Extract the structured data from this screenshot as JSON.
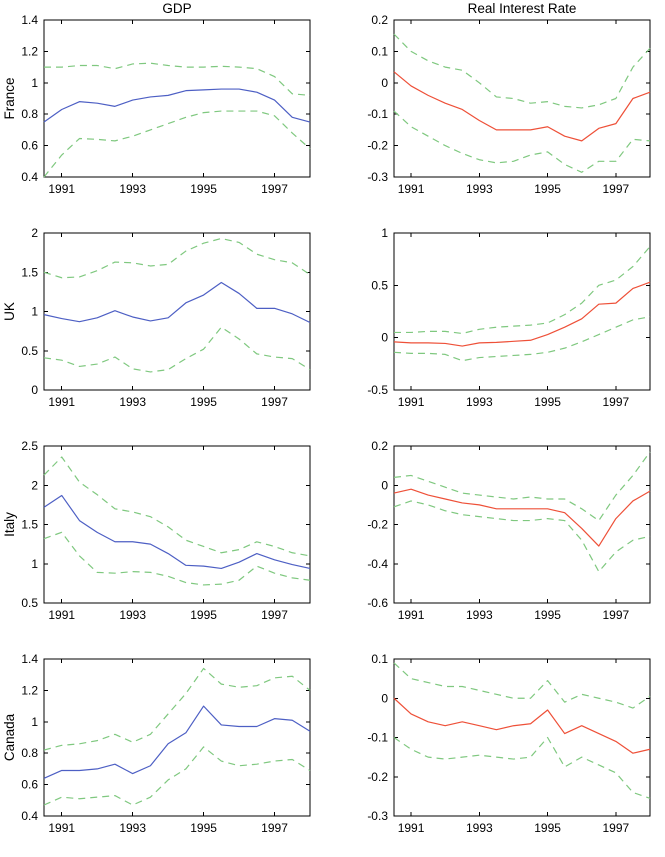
{
  "figure": {
    "columns": [
      {
        "title": "GDP"
      },
      {
        "title": "Real Interest Rate"
      }
    ],
    "rows": [
      {
        "label": "France"
      },
      {
        "label": "UK"
      },
      {
        "label": "Italy"
      },
      {
        "label": "Canada"
      }
    ],
    "colors": {
      "gdp_line": "#4d5fc4",
      "rate_line": "#ee5038",
      "band_line": "#7fc87f",
      "axis": "#000000",
      "background": "#ffffff"
    }
  },
  "chart_data": [
    {
      "id": "france-gdp",
      "type": "line",
      "row_label": "France",
      "column_title": "GDP",
      "x": [
        1990.5,
        1991,
        1991.5,
        1992,
        1992.5,
        1993,
        1993.5,
        1994,
        1994.5,
        1995,
        1995.5,
        1996,
        1996.5,
        1997,
        1997.5,
        1998
      ],
      "xlim": [
        1990.5,
        1998
      ],
      "xticks": [
        1991,
        1993,
        1995,
        1997
      ],
      "ylim": [
        0.4,
        1.4
      ],
      "yticks": [
        0.4,
        0.6,
        0.8,
        1,
        1.2,
        1.4
      ],
      "series": [
        {
          "name": "estimate",
          "style": "solid",
          "color_role": "gdp_line",
          "values": [
            0.75,
            0.83,
            0.88,
            0.87,
            0.85,
            0.89,
            0.91,
            0.92,
            0.95,
            0.955,
            0.96,
            0.96,
            0.94,
            0.89,
            0.78,
            0.75
          ]
        },
        {
          "name": "upper-band",
          "style": "dashed",
          "color_role": "band_line",
          "values": [
            1.1,
            1.1,
            1.11,
            1.11,
            1.09,
            1.12,
            1.125,
            1.11,
            1.1,
            1.1,
            1.105,
            1.1,
            1.09,
            1.04,
            0.93,
            0.92
          ]
        },
        {
          "name": "lower-band",
          "style": "dashed",
          "color_role": "band_line",
          "values": [
            0.4,
            0.54,
            0.645,
            0.64,
            0.63,
            0.66,
            0.7,
            0.74,
            0.78,
            0.81,
            0.82,
            0.82,
            0.82,
            0.79,
            0.68,
            0.58
          ]
        }
      ]
    },
    {
      "id": "france-rate",
      "type": "line",
      "row_label": "France",
      "column_title": "Real Interest Rate",
      "x": [
        1990.5,
        1991,
        1991.5,
        1992,
        1992.5,
        1993,
        1993.5,
        1994,
        1994.5,
        1995,
        1995.5,
        1996,
        1996.5,
        1997,
        1997.5,
        1998
      ],
      "xlim": [
        1990.5,
        1998
      ],
      "xticks": [
        1991,
        1993,
        1995,
        1997
      ],
      "ylim": [
        -0.3,
        0.2
      ],
      "yticks": [
        -0.3,
        -0.2,
        -0.1,
        0,
        0.1,
        0.2
      ],
      "series": [
        {
          "name": "estimate",
          "style": "solid",
          "color_role": "rate_line",
          "values": [
            0.035,
            -0.01,
            -0.04,
            -0.065,
            -0.085,
            -0.12,
            -0.15,
            -0.15,
            -0.15,
            -0.14,
            -0.17,
            -0.185,
            -0.145,
            -0.13,
            -0.05,
            -0.03
          ]
        },
        {
          "name": "upper-band",
          "style": "dashed",
          "color_role": "band_line",
          "values": [
            0.155,
            0.1,
            0.07,
            0.05,
            0.04,
            0.0,
            -0.045,
            -0.05,
            -0.065,
            -0.06,
            -0.075,
            -0.08,
            -0.07,
            -0.05,
            0.05,
            0.11
          ]
        },
        {
          "name": "lower-band",
          "style": "dashed",
          "color_role": "band_line",
          "values": [
            -0.09,
            -0.14,
            -0.17,
            -0.2,
            -0.225,
            -0.245,
            -0.255,
            -0.25,
            -0.23,
            -0.22,
            -0.26,
            -0.285,
            -0.25,
            -0.25,
            -0.18,
            -0.185
          ]
        }
      ]
    },
    {
      "id": "uk-gdp",
      "type": "line",
      "row_label": "UK",
      "column_title": "GDP",
      "x": [
        1990.5,
        1991,
        1991.5,
        1992,
        1992.5,
        1993,
        1993.5,
        1994,
        1994.5,
        1995,
        1995.5,
        1996,
        1996.5,
        1997,
        1997.5,
        1998
      ],
      "xlim": [
        1990.5,
        1998
      ],
      "xticks": [
        1991,
        1993,
        1995,
        1997
      ],
      "ylim": [
        0,
        2
      ],
      "yticks": [
        0,
        0.5,
        1,
        1.5,
        2
      ],
      "series": [
        {
          "name": "estimate",
          "style": "solid",
          "color_role": "gdp_line",
          "values": [
            0.96,
            0.91,
            0.87,
            0.92,
            1.01,
            0.93,
            0.88,
            0.92,
            1.11,
            1.21,
            1.37,
            1.23,
            1.04,
            1.04,
            0.97,
            0.86
          ]
        },
        {
          "name": "upper-band",
          "style": "dashed",
          "color_role": "band_line",
          "values": [
            1.5,
            1.43,
            1.44,
            1.52,
            1.63,
            1.62,
            1.58,
            1.6,
            1.77,
            1.87,
            1.93,
            1.88,
            1.73,
            1.66,
            1.62,
            1.47
          ]
        },
        {
          "name": "lower-band",
          "style": "dashed",
          "color_role": "band_line",
          "values": [
            0.41,
            0.38,
            0.3,
            0.33,
            0.42,
            0.27,
            0.23,
            0.26,
            0.4,
            0.52,
            0.8,
            0.65,
            0.46,
            0.42,
            0.4,
            0.26
          ]
        }
      ]
    },
    {
      "id": "uk-rate",
      "type": "line",
      "row_label": "UK",
      "column_title": "Real Interest Rate",
      "x": [
        1990.5,
        1991,
        1991.5,
        1992,
        1992.5,
        1993,
        1993.5,
        1994,
        1994.5,
        1995,
        1995.5,
        1996,
        1996.5,
        1997,
        1997.5,
        1998
      ],
      "xlim": [
        1990.5,
        1998
      ],
      "xticks": [
        1991,
        1993,
        1995,
        1997
      ],
      "ylim": [
        -0.5,
        1
      ],
      "yticks": [
        -0.5,
        0,
        0.5,
        1
      ],
      "series": [
        {
          "name": "estimate",
          "style": "solid",
          "color_role": "rate_line",
          "values": [
            -0.04,
            -0.05,
            -0.05,
            -0.055,
            -0.08,
            -0.05,
            -0.045,
            -0.035,
            -0.025,
            0.03,
            0.1,
            0.18,
            0.32,
            0.33,
            0.47,
            0.53
          ]
        },
        {
          "name": "upper-band",
          "style": "dashed",
          "color_role": "band_line",
          "values": [
            0.05,
            0.05,
            0.06,
            0.06,
            0.04,
            0.08,
            0.1,
            0.11,
            0.12,
            0.14,
            0.22,
            0.33,
            0.5,
            0.55,
            0.68,
            0.87
          ]
        },
        {
          "name": "lower-band",
          "style": "dashed",
          "color_role": "band_line",
          "values": [
            -0.14,
            -0.15,
            -0.15,
            -0.16,
            -0.22,
            -0.19,
            -0.18,
            -0.17,
            -0.16,
            -0.14,
            -0.1,
            -0.04,
            0.03,
            0.1,
            0.17,
            0.2
          ]
        }
      ]
    },
    {
      "id": "italy-gdp",
      "type": "line",
      "row_label": "Italy",
      "column_title": "GDP",
      "x": [
        1990.5,
        1991,
        1991.5,
        1992,
        1992.5,
        1993,
        1993.5,
        1994,
        1994.5,
        1995,
        1995.5,
        1996,
        1996.5,
        1997,
        1997.5,
        1998
      ],
      "xlim": [
        1990.5,
        1998
      ],
      "xticks": [
        1991,
        1993,
        1995,
        1997
      ],
      "ylim": [
        0.5,
        2.5
      ],
      "yticks": [
        0.5,
        1,
        1.5,
        2,
        2.5
      ],
      "series": [
        {
          "name": "estimate",
          "style": "solid",
          "color_role": "gdp_line",
          "values": [
            1.72,
            1.87,
            1.55,
            1.4,
            1.28,
            1.28,
            1.25,
            1.13,
            0.98,
            0.97,
            0.94,
            1.02,
            1.13,
            1.05,
            0.99,
            0.94
          ]
        },
        {
          "name": "upper-band",
          "style": "dashed",
          "color_role": "band_line",
          "values": [
            2.13,
            2.36,
            2.04,
            1.88,
            1.7,
            1.66,
            1.6,
            1.47,
            1.3,
            1.22,
            1.14,
            1.18,
            1.28,
            1.22,
            1.14,
            1.1
          ]
        },
        {
          "name": "lower-band",
          "style": "dashed",
          "color_role": "band_line",
          "values": [
            1.32,
            1.4,
            1.1,
            0.89,
            0.88,
            0.9,
            0.89,
            0.84,
            0.76,
            0.73,
            0.74,
            0.79,
            0.97,
            0.88,
            0.82,
            0.79
          ]
        }
      ]
    },
    {
      "id": "italy-rate",
      "type": "line",
      "row_label": "Italy",
      "column_title": "Real Interest Rate",
      "x": [
        1990.5,
        1991,
        1991.5,
        1992,
        1992.5,
        1993,
        1993.5,
        1994,
        1994.5,
        1995,
        1995.5,
        1996,
        1996.5,
        1997,
        1997.5,
        1998
      ],
      "xlim": [
        1990.5,
        1998
      ],
      "xticks": [
        1991,
        1993,
        1995,
        1997
      ],
      "ylim": [
        -0.6,
        0.2
      ],
      "yticks": [
        -0.6,
        -0.4,
        -0.2,
        0,
        0.2
      ],
      "series": [
        {
          "name": "estimate",
          "style": "solid",
          "color_role": "rate_line",
          "values": [
            -0.04,
            -0.02,
            -0.05,
            -0.07,
            -0.09,
            -0.1,
            -0.12,
            -0.12,
            -0.12,
            -0.12,
            -0.14,
            -0.22,
            -0.31,
            -0.17,
            -0.08,
            -0.03
          ]
        },
        {
          "name": "upper-band",
          "style": "dashed",
          "color_role": "band_line",
          "values": [
            0.04,
            0.05,
            0.02,
            -0.01,
            -0.04,
            -0.05,
            -0.06,
            -0.07,
            -0.06,
            -0.07,
            -0.07,
            -0.12,
            -0.18,
            -0.05,
            0.05,
            0.17
          ]
        },
        {
          "name": "lower-band",
          "style": "dashed",
          "color_role": "band_line",
          "values": [
            -0.11,
            -0.08,
            -0.1,
            -0.13,
            -0.15,
            -0.16,
            -0.17,
            -0.18,
            -0.18,
            -0.17,
            -0.18,
            -0.28,
            -0.44,
            -0.34,
            -0.28,
            -0.26
          ]
        }
      ]
    },
    {
      "id": "canada-gdp",
      "type": "line",
      "row_label": "Canada",
      "column_title": "GDP",
      "x": [
        1990.5,
        1991,
        1991.5,
        1992,
        1992.5,
        1993,
        1993.5,
        1994,
        1994.5,
        1995,
        1995.5,
        1996,
        1996.5,
        1997,
        1997.5,
        1998
      ],
      "xlim": [
        1990.5,
        1998
      ],
      "xticks": [
        1991,
        1993,
        1995,
        1997
      ],
      "ylim": [
        0.4,
        1.4
      ],
      "yticks": [
        0.4,
        0.6,
        0.8,
        1,
        1.2,
        1.4
      ],
      "series": [
        {
          "name": "estimate",
          "style": "solid",
          "color_role": "gdp_line",
          "values": [
            0.64,
            0.69,
            0.69,
            0.7,
            0.73,
            0.67,
            0.72,
            0.86,
            0.93,
            1.1,
            0.98,
            0.97,
            0.97,
            1.02,
            1.01,
            0.94
          ]
        },
        {
          "name": "upper-band",
          "style": "dashed",
          "color_role": "band_line",
          "values": [
            0.82,
            0.85,
            0.86,
            0.88,
            0.92,
            0.87,
            0.92,
            1.05,
            1.18,
            1.34,
            1.24,
            1.22,
            1.23,
            1.28,
            1.29,
            1.2
          ]
        },
        {
          "name": "lower-band",
          "style": "dashed",
          "color_role": "band_line",
          "values": [
            0.47,
            0.52,
            0.51,
            0.52,
            0.53,
            0.47,
            0.52,
            0.63,
            0.7,
            0.84,
            0.75,
            0.72,
            0.73,
            0.75,
            0.76,
            0.69
          ]
        }
      ]
    },
    {
      "id": "canada-rate",
      "type": "line",
      "row_label": "Canada",
      "column_title": "Real Interest Rate",
      "x": [
        1990.5,
        1991,
        1991.5,
        1992,
        1992.5,
        1993,
        1993.5,
        1994,
        1994.5,
        1995,
        1995.5,
        1996,
        1996.5,
        1997,
        1997.5,
        1998
      ],
      "xlim": [
        1990.5,
        1998
      ],
      "xticks": [
        1991,
        1993,
        1995,
        1997
      ],
      "ylim": [
        -0.3,
        0.1
      ],
      "yticks": [
        -0.3,
        -0.2,
        -0.1,
        0,
        0.1
      ],
      "series": [
        {
          "name": "estimate",
          "style": "solid",
          "color_role": "rate_line",
          "values": [
            0.0,
            -0.04,
            -0.06,
            -0.07,
            -0.06,
            -0.07,
            -0.08,
            -0.07,
            -0.065,
            -0.03,
            -0.09,
            -0.07,
            -0.09,
            -0.11,
            -0.14,
            -0.13
          ]
        },
        {
          "name": "upper-band",
          "style": "dashed",
          "color_role": "band_line",
          "values": [
            0.09,
            0.05,
            0.04,
            0.03,
            0.03,
            0.02,
            0.01,
            0.0,
            0.0,
            0.045,
            -0.01,
            0.01,
            0.0,
            -0.01,
            -0.025,
            0.005
          ]
        },
        {
          "name": "lower-band",
          "style": "dashed",
          "color_role": "band_line",
          "values": [
            -0.1,
            -0.13,
            -0.15,
            -0.155,
            -0.15,
            -0.145,
            -0.15,
            -0.155,
            -0.15,
            -0.1,
            -0.175,
            -0.15,
            -0.17,
            -0.19,
            -0.24,
            -0.255
          ]
        }
      ]
    }
  ]
}
